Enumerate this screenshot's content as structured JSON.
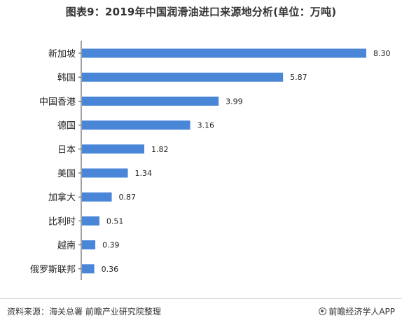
{
  "chart_data": {
    "type": "bar",
    "orientation": "horizontal",
    "title": "图表9：2019年中国润滑油进口来源地分析(单位：万吨)",
    "categories": [
      "新加坡",
      "韩国",
      "中国香港",
      "德国",
      "日本",
      "美国",
      "加拿大",
      "比利时",
      "越南",
      "俄罗斯联邦"
    ],
    "values": [
      8.3,
      5.87,
      3.99,
      3.16,
      1.82,
      1.34,
      0.87,
      0.51,
      0.39,
      0.36
    ],
    "value_labels": [
      "8.30",
      "5.87",
      "3.99",
      "3.16",
      "1.82",
      "1.34",
      "0.87",
      "0.51",
      "0.39",
      "0.36"
    ],
    "xlim": [
      0,
      8.3
    ],
    "grid": false,
    "bar_color": "#4a86d8"
  },
  "footer": {
    "source": "资料来源：海关总署 前瞻产业研究院整理",
    "brand": "前瞻经济学人APP"
  }
}
